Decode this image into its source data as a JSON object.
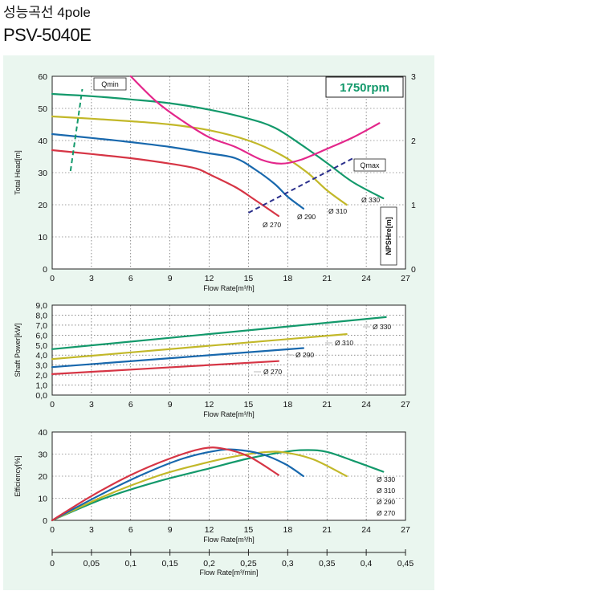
{
  "header": {
    "subtitle": "성능곡선 4pole",
    "model": "PSV-5040E"
  },
  "colors": {
    "d330": "#13996b",
    "d310": "#c2b829",
    "d290": "#1868ad",
    "d270": "#d63545",
    "npsh": "#e3278b",
    "qline": "#2a2f8c",
    "panel_bg": "#eaf6ef"
  },
  "chart_data": [
    {
      "id": "head",
      "type": "line",
      "ylabel": "Total Head[m]",
      "xlabel": "Flow Rate[m³/h]",
      "secondary_ylabel": "NPSHre[m]",
      "speed_label": "1750rpm",
      "xlim": [
        0,
        27
      ],
      "ylim": [
        0,
        60
      ],
      "y2lim": [
        0,
        3
      ],
      "x_ticks": [
        "0",
        "3",
        "6",
        "9",
        "12",
        "15",
        "18",
        "21",
        "24",
        "27"
      ],
      "y_ticks": [
        "0",
        "10",
        "20",
        "30",
        "40",
        "50",
        "60"
      ],
      "y2_ticks": [
        "0",
        "1",
        "2",
        "3"
      ],
      "series": [
        {
          "name": "Ø 330",
          "color_key": "d330",
          "points": [
            [
              0,
              54.5
            ],
            [
              3,
              53.8
            ],
            [
              6,
              52.8
            ],
            [
              9,
              51.6
            ],
            [
              12,
              49.6
            ],
            [
              15,
              46.8
            ],
            [
              17,
              44
            ],
            [
              19,
              38.8
            ],
            [
              21,
              33
            ],
            [
              23,
              27
            ],
            [
              25.3,
              22
            ]
          ]
        },
        {
          "name": "Ø 310",
          "color_key": "d310",
          "points": [
            [
              0,
              47.5
            ],
            [
              3,
              46.8
            ],
            [
              6,
              46
            ],
            [
              9,
              45
            ],
            [
              12,
              43.2
            ],
            [
              15,
              40
            ],
            [
              17.5,
              35.5
            ],
            [
              19.5,
              30
            ],
            [
              21,
              24.5
            ],
            [
              22.5,
              20
            ]
          ]
        },
        {
          "name": "Ø 290",
          "color_key": "d290",
          "points": [
            [
              0,
              42
            ],
            [
              3,
              40.8
            ],
            [
              6,
              39.5
            ],
            [
              9,
              38
            ],
            [
              12,
              36
            ],
            [
              14,
              34.5
            ],
            [
              15.5,
              31
            ],
            [
              17,
              26.5
            ],
            [
              18,
              22.5
            ],
            [
              19.2,
              18.8
            ]
          ]
        },
        {
          "name": "Ø 270",
          "color_key": "d270",
          "points": [
            [
              0,
              37
            ],
            [
              3,
              35.8
            ],
            [
              6,
              34.5
            ],
            [
              9,
              32.8
            ],
            [
              11,
              31.3
            ],
            [
              12,
              29.5
            ],
            [
              14,
              25.5
            ],
            [
              15.5,
              21.5
            ],
            [
              17.3,
              16.5
            ]
          ]
        },
        {
          "name": "NPSHre",
          "color_key": "npsh",
          "axis": "y2",
          "points": [
            [
              6,
              3
            ],
            [
              8,
              2.6
            ],
            [
              10,
              2.3
            ],
            [
              12,
              2.05
            ],
            [
              14,
              1.9
            ],
            [
              16,
              1.7
            ],
            [
              17.5,
              1.64
            ],
            [
              19,
              1.7
            ],
            [
              21,
              1.87
            ],
            [
              23,
              2.05
            ],
            [
              25,
              2.27
            ]
          ]
        }
      ],
      "markers": [
        {
          "name": "Qmin",
          "points": [
            [
              1.4,
              30.5
            ],
            [
              2.3,
              56
            ]
          ]
        },
        {
          "name": "Qmax",
          "points": [
            [
              15,
              17.5
            ],
            [
              23,
              34.5
            ]
          ]
        }
      ]
    },
    {
      "id": "power",
      "type": "line",
      "ylabel": "Shaft Power[kW]",
      "xlabel": "Flow Rate[m³/h]",
      "xlim": [
        0,
        27
      ],
      "ylim": [
        0,
        9
      ],
      "x_ticks": [
        "0",
        "3",
        "6",
        "9",
        "12",
        "15",
        "18",
        "21",
        "24",
        "27"
      ],
      "y_ticks": [
        "0,0",
        "1,0",
        "2,0",
        "3,0",
        "4,0",
        "5,0",
        "6,0",
        "7,0",
        "8,0",
        "9,0"
      ],
      "series": [
        {
          "name": "Ø 330",
          "color_key": "d330",
          "points": [
            [
              0,
              4.6
            ],
            [
              25.5,
              7.8
            ]
          ]
        },
        {
          "name": "Ø 310",
          "color_key": "d310",
          "points": [
            [
              0,
              3.6
            ],
            [
              22.5,
              6.1
            ]
          ]
        },
        {
          "name": "Ø 290",
          "color_key": "d290",
          "points": [
            [
              0,
              2.8
            ],
            [
              19.2,
              4.7
            ]
          ]
        },
        {
          "name": "Ø 270",
          "color_key": "d270",
          "points": [
            [
              0,
              2.1
            ],
            [
              17.3,
              3.4
            ]
          ]
        }
      ]
    },
    {
      "id": "efficiency",
      "type": "line",
      "ylabel": "Efficiency[%]",
      "xlabel": "Flow Rate[m³/h]",
      "xlim": [
        0,
        27
      ],
      "ylim": [
        0,
        40
      ],
      "x_ticks": [
        "0",
        "3",
        "6",
        "9",
        "12",
        "15",
        "18",
        "21",
        "24",
        "27"
      ],
      "y_ticks": [
        "0",
        "10",
        "20",
        "30",
        "40"
      ],
      "secondary_xlabel": "Flow Rate[m³/min]",
      "x2_ticks": [
        "0",
        "0,05",
        "0,1",
        "0,15",
        "0,2",
        "0,25",
        "0,3",
        "0,35",
        "0,4",
        "0,45"
      ],
      "series": [
        {
          "name": "Ø 330",
          "color_key": "d330",
          "points": [
            [
              0,
              0
            ],
            [
              4,
              10
            ],
            [
              8,
              17.5
            ],
            [
              12,
              23.5
            ],
            [
              15,
              28
            ],
            [
              18,
              31.2
            ],
            [
              19.5,
              31.8
            ],
            [
              21,
              31
            ],
            [
              23,
              27
            ],
            [
              25.3,
              22
            ]
          ]
        },
        {
          "name": "Ø 310",
          "color_key": "d310",
          "points": [
            [
              0,
              0
            ],
            [
              4,
              11
            ],
            [
              8,
              20
            ],
            [
              11,
              25
            ],
            [
              14,
              29
            ],
            [
              16.5,
              31
            ],
            [
              18,
              30.5
            ],
            [
              20,
              27.5
            ],
            [
              22.5,
              20
            ]
          ]
        },
        {
          "name": "Ø 290",
          "color_key": "d290",
          "points": [
            [
              0,
              0
            ],
            [
              3.5,
              11
            ],
            [
              7,
              21
            ],
            [
              10,
              28
            ],
            [
              12.5,
              31.5
            ],
            [
              14,
              32
            ],
            [
              16,
              30
            ],
            [
              17.8,
              25.5
            ],
            [
              19.2,
              20
            ]
          ]
        },
        {
          "name": "Ø 270",
          "color_key": "d270",
          "points": [
            [
              0,
              0
            ],
            [
              3,
              11
            ],
            [
              6,
              20.5
            ],
            [
              9,
              28
            ],
            [
              11.5,
              32.5
            ],
            [
              13,
              32.5
            ],
            [
              15,
              29
            ],
            [
              17.3,
              20.5
            ]
          ]
        }
      ],
      "legend": [
        "Ø 330",
        "Ø 310",
        "Ø 290",
        "Ø 270"
      ]
    }
  ]
}
